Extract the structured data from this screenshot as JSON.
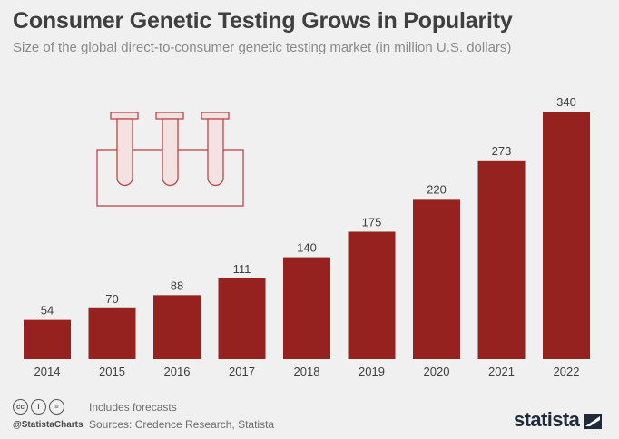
{
  "header": {
    "title": "Consumer Genetic Testing Grows in Popularity",
    "subtitle": "Size of the global direct-to-consumer genetic testing market (in million U.S. dollars)"
  },
  "chart_data": {
    "type": "bar",
    "categories": [
      "2014",
      "2015",
      "2016",
      "2017",
      "2018",
      "2019",
      "2020",
      "2021",
      "2022"
    ],
    "values": [
      54,
      70,
      88,
      111,
      140,
      175,
      220,
      273,
      340
    ],
    "title": "Consumer Genetic Testing Grows in Popularity",
    "xlabel": "",
    "ylabel": "",
    "ylim": [
      0,
      340
    ],
    "grid": false,
    "bar_color": "#962220"
  },
  "footer": {
    "note": "Includes forecasts",
    "sources": "Sources: Credence Research, Statista",
    "handle": "@StatistaCharts",
    "brand": "statista"
  },
  "decoration": {
    "icon": "test-tubes-icon"
  },
  "colors": {
    "background": "#f0f0f0",
    "bar": "#962220",
    "title": "#3f3f3f",
    "brand": "#1f2b3c"
  }
}
